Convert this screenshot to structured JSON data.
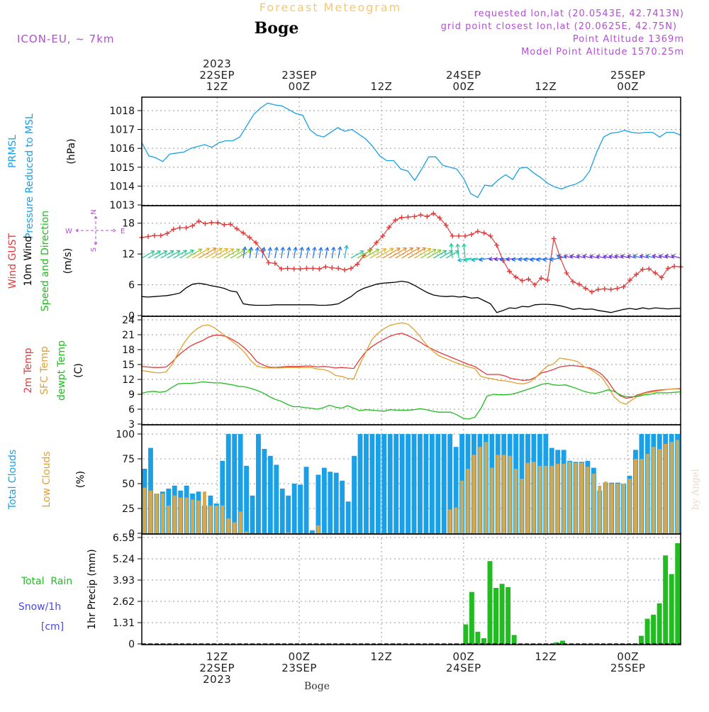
{
  "header": {
    "title": "Forecast Meteogram",
    "location": "Boge",
    "model": "ICON-EU, ~ 7km",
    "requested": "requested lon,lat (20.0543E, 42.7413N)",
    "grid": "grid point closest lon,lat (20.0625E, 42.75N)",
    "point_alt": "Point Altitude 1369m",
    "model_alt": "Model Point Altitude 1570.25m",
    "footer_location": "Boge",
    "credit": "by Angel"
  },
  "time_axis": {
    "top": [
      {
        "h": 12,
        "lines": [
          "2023",
          "22SEP",
          "12Z"
        ]
      },
      {
        "h": 24,
        "lines": [
          "23SEP",
          "00Z"
        ]
      },
      {
        "h": 36,
        "lines": [
          "12Z"
        ]
      },
      {
        "h": 48,
        "lines": [
          "24SEP",
          "00Z"
        ]
      },
      {
        "h": 60,
        "lines": [
          "12Z"
        ]
      },
      {
        "h": 72,
        "lines": [
          "25SEP",
          "00Z"
        ]
      }
    ],
    "bottom": [
      {
        "h": 12,
        "lines": [
          "12Z",
          "22SEP",
          "2023"
        ]
      },
      {
        "h": 24,
        "lines": [
          "00Z",
          "23SEP"
        ]
      },
      {
        "h": 36,
        "lines": [
          "12Z"
        ]
      },
      {
        "h": 48,
        "lines": [
          "00Z",
          "24SEP"
        ]
      },
      {
        "h": 60,
        "lines": [
          "12Z"
        ]
      },
      {
        "h": 72,
        "lines": [
          "00Z",
          "25SEP"
        ]
      }
    ]
  },
  "chart_data": [
    {
      "type": "line",
      "id": "pressure",
      "title": "PRMSL Pressure Reduced to MSL",
      "label_lines": [
        {
          "text": "PRMSL",
          "color": "#1aa0e6"
        },
        {
          "text": "Pressure Reduced to MSL",
          "color": "#1aa0e6"
        }
      ],
      "ylabel": "(hPa)",
      "ylim": [
        1013,
        1018.6
      ],
      "yticks": [
        1013,
        1014,
        1015,
        1016,
        1017,
        1018
      ],
      "series": [
        {
          "name": "PRMSL",
          "color": "#1aa0e6",
          "values": [
            1016.3,
            1015.6,
            1015.5,
            1015.3,
            1015.7,
            1015.75,
            1015.8,
            1016.0,
            1016.1,
            1016.2,
            1016.05,
            1016.3,
            1016.4,
            1016.4,
            1016.6,
            1017.2,
            1017.8,
            1018.15,
            1018.4,
            1018.3,
            1018.25,
            1018.05,
            1017.85,
            1017.75,
            1017.0,
            1016.7,
            1016.6,
            1016.85,
            1017.1,
            1016.9,
            1017.0,
            1016.75,
            1016.5,
            1016.1,
            1015.6,
            1015.35,
            1015.35,
            1014.9,
            1014.8,
            1014.3,
            1014.9,
            1015.55,
            1015.55,
            1015.1,
            1015.0,
            1014.9,
            1014.4,
            1013.6,
            1013.4,
            1014.05,
            1014.0,
            1014.35,
            1014.6,
            1014.35,
            1014.95,
            1015.0,
            1014.7,
            1014.45,
            1014.15,
            1013.95,
            1013.85,
            1014.0,
            1014.1,
            1014.3,
            1014.8,
            1015.8,
            1016.6,
            1016.8,
            1016.85,
            1016.95,
            1016.85,
            1016.8,
            1016.85,
            1016.85,
            1016.6,
            1016.85,
            1016.85,
            1016.7
          ]
        }
      ]
    },
    {
      "type": "line",
      "id": "wind",
      "title": "Wind GUST / 10m Wind Speed and Direction",
      "label_lines": [
        {
          "text": "Wind GUST",
          "color": "#e03c3c"
        },
        {
          "text": "10m Wind",
          "color": "#000000"
        },
        {
          "text": "Speed and Direction",
          "color": "#22bb22"
        }
      ],
      "ylabel": "(m/s)",
      "ylim": [
        0,
        21
      ],
      "yticks": [
        0,
        6,
        12,
        18
      ],
      "compass": {
        "n": "N",
        "s": "S",
        "w": "W",
        "e": "E"
      },
      "series": [
        {
          "name": "Wind GUST",
          "color": "#e03c3c",
          "marker": "+",
          "values": [
            15.2,
            15.4,
            15.6,
            15.6,
            16.0,
            16.8,
            17.1,
            17.1,
            17.5,
            18.4,
            17.9,
            18.1,
            18.1,
            17.7,
            17.8,
            16.9,
            16.1,
            15.2,
            14.2,
            12.6,
            10.3,
            10.2,
            9.1,
            9.2,
            9.1,
            9.1,
            9.2,
            9.2,
            9.1,
            9.5,
            9.3,
            9.2,
            8.9,
            9.2,
            10.0,
            11.7,
            12.8,
            14.2,
            15.5,
            17.2,
            18.6,
            19.1,
            19.2,
            19.3,
            19.6,
            19.3,
            19.9,
            19.0,
            17.6,
            15.5,
            15.5,
            15.5,
            15.8,
            16.4,
            16.1,
            15.5,
            13.7,
            10.7,
            8.6,
            7.5,
            6.8,
            7.1,
            6.0,
            7.3,
            6.9,
            15.0,
            11.3,
            8.3,
            6.6,
            6.1,
            5.3,
            4.6,
            5.1,
            5.2,
            5.1,
            5.3,
            5.6,
            6.9,
            8.0,
            9.0,
            9.1,
            8.3,
            7.4,
            9.2,
            9.6,
            9.5
          ]
        },
        {
          "name": "10m Wind",
          "color": "#000000",
          "values": [
            3.7,
            3.6,
            3.7,
            3.8,
            3.9,
            4.1,
            4.4,
            5.4,
            6.1,
            6.3,
            6.1,
            5.8,
            5.6,
            5.3,
            4.8,
            4.6,
            2.3,
            2.1,
            2.0,
            2.0,
            2.0,
            2.1,
            2.1,
            2.1,
            2.1,
            2.1,
            2.1,
            2.1,
            2.0,
            2.0,
            2.1,
            2.3,
            3.0,
            3.7,
            4.7,
            5.3,
            5.7,
            6.1,
            6.3,
            6.4,
            6.5,
            6.7,
            6.5,
            5.9,
            5.2,
            4.5,
            4.0,
            3.8,
            3.7,
            3.8,
            3.6,
            3.7,
            3.4,
            3.5,
            2.9,
            2.3,
            0.6,
            1.0,
            1.5,
            1.4,
            1.8,
            1.7,
            2.1,
            2.2,
            2.2,
            2.1,
            1.9,
            1.6,
            1.2,
            1.4,
            1.2,
            1.3,
            1.0,
            0.8,
            0.6,
            0.9,
            1.2,
            1.4,
            1.2,
            1.5,
            1.3,
            1.5,
            1.4,
            1.3,
            1.4,
            1.4
          ]
        }
      ]
    },
    {
      "type": "line",
      "id": "temperature",
      "title": "2m Temp / SFC Temp / dewpt Temp",
      "label_lines": [
        {
          "text": "2m Temp",
          "color": "#e03c3c"
        },
        {
          "text": "SFC Temp",
          "color": "#e0a030"
        },
        {
          "text": "dewpt Temp",
          "color": "#22bb22"
        }
      ],
      "ylabel": "(C)",
      "ylim": [
        3,
        24
      ],
      "yticks": [
        3,
        6,
        9,
        12,
        15,
        18,
        21,
        24
      ],
      "series": [
        {
          "name": "2m Temp",
          "color": "#e03c3c",
          "values": [
            14.6,
            14.5,
            14.4,
            14.4,
            14.5,
            15.5,
            16.8,
            17.8,
            18.7,
            19.3,
            19.8,
            20.5,
            20.9,
            20.9,
            20.6,
            20.0,
            19.3,
            18.3,
            17.1,
            15.6,
            14.9,
            14.5,
            14.4,
            14.5,
            14.6,
            14.6,
            14.6,
            14.7,
            14.7,
            14.5,
            14.6,
            14.5,
            14.3,
            14.4,
            14.3,
            14.2,
            16.0,
            17.6,
            18.6,
            19.4,
            20.1,
            20.7,
            21.1,
            21.3,
            20.8,
            20.2,
            19.5,
            18.7,
            18.1,
            17.5,
            17.0,
            16.5,
            16.0,
            15.5,
            15.0,
            14.6,
            13.8,
            13.0,
            13.0,
            13.0,
            12.7,
            12.2,
            12.0,
            11.8,
            11.9,
            12.4,
            13.3,
            13.6,
            14.0,
            14.5,
            14.7,
            14.8,
            14.7,
            14.5,
            14.3,
            13.8,
            13.0,
            11.6,
            9.8,
            8.7,
            8.2,
            8.4,
            8.9,
            9.3,
            9.6,
            9.8,
            9.9,
            10.0,
            10.1,
            10.1
          ]
        },
        {
          "name": "SFC Temp",
          "color": "#e0a030",
          "values": [
            13.8,
            13.6,
            13.4,
            13.3,
            13.5,
            15.0,
            17.3,
            19.4,
            21.0,
            22.1,
            22.8,
            23.0,
            22.4,
            21.5,
            20.5,
            19.6,
            18.6,
            17.4,
            15.8,
            14.7,
            14.4,
            14.3,
            14.3,
            14.3,
            14.4,
            14.4,
            14.4,
            14.4,
            14.4,
            14.1,
            14.0,
            13.6,
            12.8,
            12.6,
            12.2,
            12.1,
            15.0,
            17.5,
            20.0,
            21.3,
            22.2,
            22.9,
            23.2,
            23.4,
            23.1,
            22.0,
            20.6,
            19.0,
            17.8,
            16.8,
            16.3,
            15.8,
            15.3,
            14.9,
            14.5,
            14.2,
            12.6,
            12.3,
            12.1,
            11.8,
            11.7,
            11.5,
            11.2,
            11.1,
            11.4,
            12.3,
            13.6,
            14.7,
            15.1,
            16.3,
            16.1,
            15.9,
            15.6,
            14.6,
            14.1,
            13.3,
            12.4,
            10.6,
            8.5,
            7.4,
            7.0,
            7.9,
            8.7,
            9.2,
            9.4,
            9.6,
            9.8,
            10.0,
            10.1,
            10.2
          ]
        },
        {
          "name": "dewpt Temp",
          "color": "#22bb22",
          "values": [
            9.2,
            9.5,
            9.6,
            9.4,
            9.6,
            10.4,
            11.1,
            11.2,
            11.2,
            11.3,
            11.5,
            11.4,
            11.3,
            11.3,
            11.1,
            10.9,
            10.6,
            10.5,
            10.2,
            9.8,
            9.3,
            8.6,
            8.0,
            7.6,
            7.0,
            6.5,
            6.5,
            6.3,
            6.2,
            6.0,
            6.3,
            6.8,
            6.4,
            6.2,
            6.7,
            6.2,
            5.7,
            5.9,
            5.8,
            5.7,
            5.6,
            5.9,
            5.8,
            5.8,
            5.8,
            5.9,
            6.1,
            5.9,
            5.6,
            5.4,
            5.4,
            5.4,
            4.9,
            4.2,
            4.0,
            4.4,
            6.1,
            8.6,
            9.0,
            8.9,
            8.9,
            9.0,
            9.3,
            9.7,
            10.1,
            10.5,
            11.0,
            11.2,
            10.9,
            10.8,
            10.9,
            10.5,
            10.1,
            9.6,
            9.3,
            9.2,
            9.5,
            9.9,
            9.6,
            8.9,
            8.5,
            8.5,
            8.6,
            8.9,
            9.0,
            9.3,
            9.3,
            9.3,
            9.4,
            9.5
          ]
        }
      ]
    },
    {
      "type": "bar",
      "id": "clouds",
      "title": "Total Clouds / Low Clouds",
      "label_lines": [
        {
          "text": "Total Clouds",
          "color": "#1aa0e6"
        },
        {
          "text": "Low Clouds",
          "color": "#e0a030"
        }
      ],
      "ylabel": "(%)",
      "ylim": [
        0,
        100
      ],
      "yticks": [
        0,
        25,
        50,
        75,
        100
      ],
      "series": [
        {
          "name": "Total Clouds",
          "color": "#1aa0e6",
          "values": [
            65,
            86,
            40,
            42,
            45,
            48,
            43,
            48,
            40,
            42,
            28,
            38,
            30,
            73,
            100,
            100,
            100,
            68,
            38,
            100,
            85,
            78,
            69,
            45,
            38,
            50,
            49,
            67,
            3,
            59,
            66,
            62,
            61,
            53,
            32,
            78,
            100,
            100,
            100,
            100,
            100,
            100,
            100,
            100,
            100,
            100,
            100,
            100,
            100,
            100,
            100,
            100,
            87,
            100,
            100,
            100,
            100,
            100,
            100,
            100,
            100,
            100,
            100,
            100,
            100,
            100,
            100,
            100,
            86,
            84,
            84,
            73,
            72,
            72,
            73,
            66,
            43,
            51,
            51,
            51,
            50,
            58,
            84,
            100,
            100,
            100,
            100,
            100,
            100,
            100
          ]
        },
        {
          "name": "Low Clouds",
          "color": "#d6a84e",
          "values": [
            46,
            43,
            40,
            40,
            28,
            38,
            36,
            36,
            34,
            33,
            42,
            28,
            28,
            28,
            15,
            11,
            22,
            2,
            0,
            0,
            0,
            0,
            0,
            0,
            1,
            0,
            0,
            0,
            0,
            8,
            0,
            0,
            0,
            0,
            0,
            0,
            0,
            0,
            0,
            0,
            0,
            0,
            0,
            0,
            0,
            0,
            0,
            0,
            0,
            0,
            0,
            24,
            26,
            53,
            65,
            79,
            87,
            92,
            66,
            79,
            79,
            78,
            65,
            55,
            71,
            72,
            68,
            68,
            68,
            70,
            70,
            72,
            71,
            71,
            67,
            60,
            48,
            52,
            50,
            50,
            50,
            55,
            75,
            75,
            80,
            87,
            85,
            90,
            92,
            94
          ]
        }
      ]
    },
    {
      "type": "bar",
      "id": "precip",
      "title": "1hr Precip (mm)",
      "label_lines": [
        {
          "text": "Total  Rain",
          "color": "#22bb22"
        },
        {
          "text": "Snow/1h",
          "color": "#4a4ae0"
        },
        {
          "text": "[cm]",
          "color": "#4a4ae0"
        }
      ],
      "ylabel": "1hr Precip (mm)",
      "ylim": [
        0,
        6.55
      ],
      "yticks": [
        0,
        1.31,
        2.62,
        3.93,
        5.24,
        6.55
      ],
      "series": [
        {
          "name": "Total Rain",
          "color": "#22bb22",
          "values": [
            0,
            0,
            0,
            0,
            0,
            0,
            0,
            0,
            0,
            0,
            0,
            0,
            0,
            0,
            0,
            0,
            0,
            0,
            0,
            0,
            0,
            0,
            0,
            0,
            0,
            0,
            0,
            0,
            0,
            0,
            0,
            0,
            0,
            0,
            0,
            0,
            0,
            0,
            0,
            0,
            0,
            0,
            0,
            0,
            0,
            0,
            0,
            0,
            0,
            0,
            0,
            0,
            0,
            1.2,
            3.2,
            0.75,
            0.35,
            5.1,
            3.45,
            3.7,
            3.5,
            0.55,
            0,
            0,
            0,
            0,
            0,
            0,
            0.1,
            0.2,
            0,
            0,
            0,
            0,
            0,
            0,
            0,
            0,
            0,
            0,
            0,
            0,
            0.5,
            1.55,
            1.8,
            2.5,
            5.45,
            4.3,
            6.2
          ]
        }
      ]
    }
  ]
}
